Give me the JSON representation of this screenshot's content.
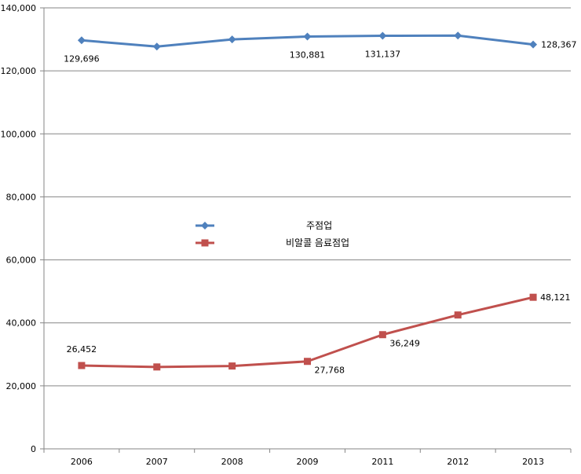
{
  "chart_data": {
    "type": "line",
    "title": "",
    "xlabel": "",
    "ylabel": "",
    "categories": [
      "2006",
      "2007",
      "2008",
      "2009",
      "2011",
      "2012",
      "2013"
    ],
    "ylim": [
      0,
      140000
    ],
    "yticks": [
      0,
      20000,
      40000,
      60000,
      80000,
      100000,
      120000,
      140000
    ],
    "ytick_labels": [
      "0",
      "20,000",
      "40,000",
      "60,000",
      "80,000",
      "100,000",
      "120,000",
      "140,000"
    ],
    "grid": true,
    "legend_position": "center-left",
    "series": [
      {
        "name": "주점업",
        "color": "#4F81BD",
        "marker": "diamond",
        "values": [
          129696,
          127700,
          130000,
          130881,
          131137,
          131200,
          128367
        ],
        "data_labels": [
          "129,696",
          "",
          "",
          "130,881",
          "131,137",
          "",
          "128,367"
        ]
      },
      {
        "name": "비알콜 음료점업",
        "color": "#C0504D",
        "marker": "square",
        "values": [
          26452,
          26000,
          26300,
          27768,
          36249,
          42500,
          48121
        ],
        "data_labels": [
          "26,452",
          "",
          "",
          "27,768",
          "36,249",
          "",
          "48,121"
        ]
      }
    ]
  }
}
